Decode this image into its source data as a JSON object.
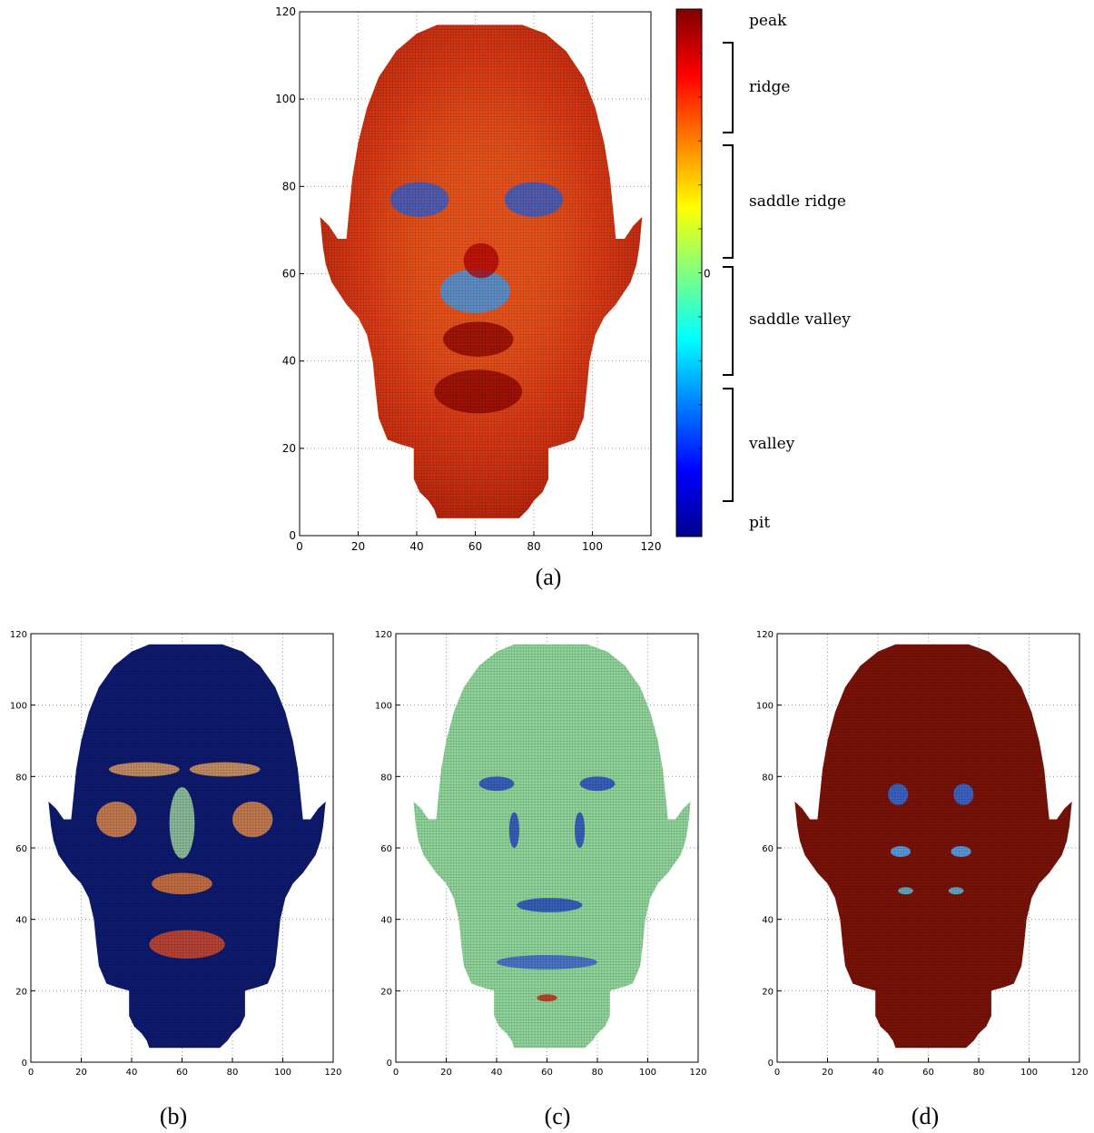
{
  "chart_data": [
    {
      "panel": "a",
      "type": "heatmap",
      "caption": "(a)",
      "xlim": [
        0,
        120
      ],
      "ylim": [
        0,
        120
      ],
      "x_ticks": [
        0,
        20,
        40,
        60,
        80,
        100,
        120
      ],
      "y_ticks": [
        0,
        20,
        40,
        60,
        80,
        100,
        120
      ],
      "grid": true,
      "colormap": "jet",
      "face_fill": "#e8501c",
      "colorbar": {
        "zero_label": "0",
        "labels": [
          "peak",
          "ridge",
          "saddle ridge",
          "saddle valley",
          "valley",
          "pit"
        ]
      }
    },
    {
      "panel": "b",
      "type": "heatmap",
      "caption": "(b)",
      "xlim": [
        0,
        120
      ],
      "ylim": [
        0,
        120
      ],
      "x_ticks": [
        0,
        20,
        40,
        60,
        80,
        100,
        120
      ],
      "y_ticks": [
        0,
        20,
        40,
        60,
        80,
        100,
        120
      ],
      "grid": true,
      "face_fill": "#0e1a6e"
    },
    {
      "panel": "c",
      "type": "heatmap",
      "caption": "(c)",
      "xlim": [
        0,
        120
      ],
      "ylim": [
        0,
        120
      ],
      "x_ticks": [
        0,
        20,
        40,
        60,
        80,
        100,
        120
      ],
      "y_ticks": [
        0,
        20,
        40,
        60,
        80,
        100,
        120
      ],
      "grid": true,
      "face_fill": "#8fd49a"
    },
    {
      "panel": "d",
      "type": "heatmap",
      "caption": "(d)",
      "xlim": [
        0,
        120
      ],
      "ylim": [
        0,
        120
      ],
      "x_ticks": [
        0,
        20,
        40,
        60,
        80,
        100,
        120
      ],
      "y_ticks": [
        0,
        20,
        40,
        60,
        80,
        100,
        120
      ],
      "grid": true,
      "face_fill": "#7a1208"
    }
  ]
}
